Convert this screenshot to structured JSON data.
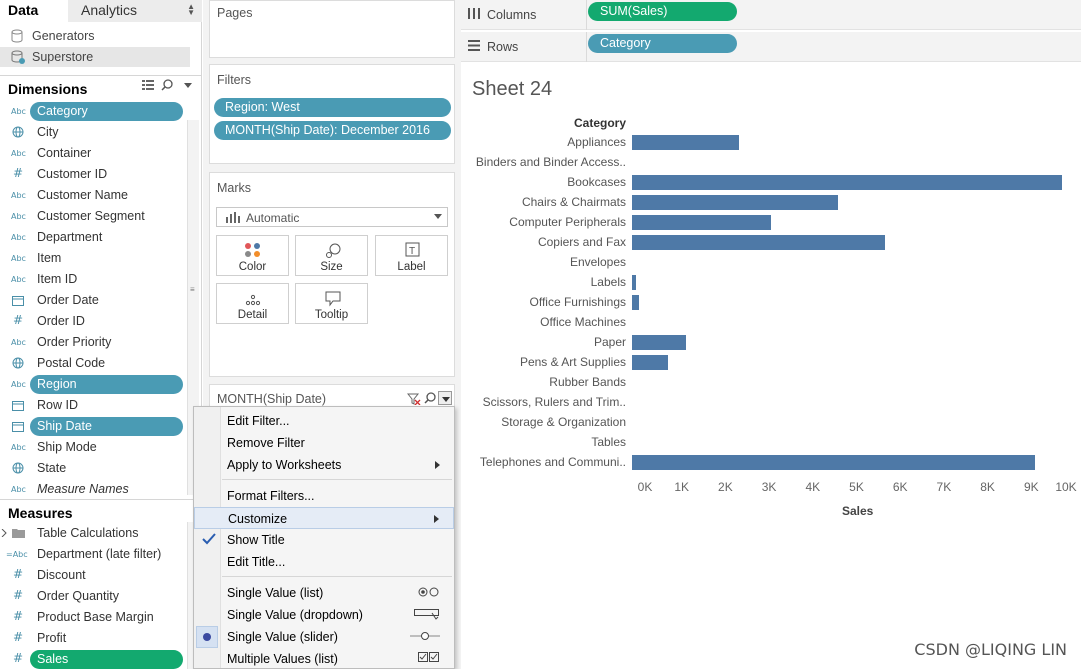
{
  "tabs": {
    "data": "Data",
    "analytics": "Analytics"
  },
  "datasources": [
    "Generators",
    "Superstore"
  ],
  "dimensions_header": "Dimensions",
  "dimensions": [
    {
      "type": "Abc",
      "label": "Category",
      "pill": true
    },
    {
      "type": "globe",
      "label": "City"
    },
    {
      "type": "Abc",
      "label": "Container"
    },
    {
      "type": "#",
      "label": "Customer ID"
    },
    {
      "type": "Abc",
      "label": "Customer Name"
    },
    {
      "type": "Abc",
      "label": "Customer Segment"
    },
    {
      "type": "Abc",
      "label": "Department"
    },
    {
      "type": "Abc",
      "label": "Item"
    },
    {
      "type": "Abc",
      "label": "Item ID"
    },
    {
      "type": "date",
      "label": "Order Date"
    },
    {
      "type": "#",
      "label": "Order ID"
    },
    {
      "type": "Abc",
      "label": "Order Priority"
    },
    {
      "type": "globe",
      "label": "Postal Code"
    },
    {
      "type": "Abc",
      "label": "Region",
      "pill": true
    },
    {
      "type": "date",
      "label": "Row ID"
    },
    {
      "type": "date",
      "label": "Ship Date",
      "pill": true
    },
    {
      "type": "Abc",
      "label": "Ship Mode"
    },
    {
      "type": "globe",
      "label": "State"
    },
    {
      "type": "Abc",
      "label": "Measure Names",
      "italic": true
    }
  ],
  "measures_header": "Measures",
  "measures": [
    {
      "type": "folder",
      "label": "Table Calculations"
    },
    {
      "type": "=Abc",
      "label": "Department (late filter)"
    },
    {
      "type": "#",
      "label": "Discount"
    },
    {
      "type": "#",
      "label": "Order Quantity"
    },
    {
      "type": "#",
      "label": "Product Base Margin"
    },
    {
      "type": "#",
      "label": "Profit"
    },
    {
      "type": "#",
      "label": "Sales",
      "pill": true
    }
  ],
  "cards": {
    "pages": "Pages",
    "filters": "Filters",
    "filter_pills": [
      "Region: West",
      "MONTH(Ship Date): December 2016"
    ],
    "marks": "Marks",
    "mark_type": "Automatic",
    "mark_buttons": [
      "Color",
      "Size",
      "Label",
      "Detail",
      "Tooltip"
    ],
    "quick_filter": "MONTH(Ship Date)"
  },
  "shelves": {
    "columns_label": "Columns",
    "columns_pill": "SUM(Sales)",
    "rows_label": "Rows",
    "rows_pill": "Category"
  },
  "colors": {
    "teal_pill": "#4a9bb4",
    "green_pill": "#13a96f",
    "bar": "#4e79a7"
  },
  "context_menu": {
    "items": [
      {
        "label": "Edit Filter..."
      },
      {
        "label": "Remove Filter"
      },
      {
        "label": "Apply to Worksheets",
        "submenu": true
      },
      {
        "label": "Format Filters..."
      },
      {
        "label": "Customize",
        "submenu": true,
        "highlighted": true
      },
      {
        "label": "Show Title",
        "checked": true
      },
      {
        "label": "Edit Title..."
      },
      {
        "label": "Single Value (list)",
        "icon": "radio-pair-icon"
      },
      {
        "label": "Single Value (dropdown)",
        "icon": "dropdown-icon"
      },
      {
        "label": "Single Value (slider)",
        "icon": "slider-icon",
        "selected": true
      },
      {
        "label": "Multiple Values (list)",
        "icon": "checkbox-pair-icon"
      }
    ]
  },
  "sheet_title": "Sheet 24",
  "chart_data": {
    "type": "bar",
    "orientation": "horizontal",
    "row_header": "Category",
    "categories": [
      "Appliances",
      "Binders and Binder Access..",
      "Bookcases",
      "Chairs & Chairmats",
      "Computer Peripherals",
      "Copiers and Fax",
      "Envelopes",
      "Labels",
      "Office Furnishings",
      "Office Machines",
      "Paper",
      "Pens & Art Supplies",
      "Rubber Bands",
      "Scissors, Rulers and Trim..",
      "Storage & Organization",
      "Tables",
      "Telephones and Communi.."
    ],
    "values": [
      2450,
      0,
      9850,
      4720,
      3180,
      5780,
      0,
      100,
      150,
      0,
      1230,
      820,
      0,
      0,
      0,
      0,
      9220
    ],
    "xlim": [
      0,
      10000
    ],
    "xticks": [
      "0K",
      "1K",
      "2K",
      "3K",
      "4K",
      "5K",
      "6K",
      "7K",
      "8K",
      "9K",
      "10K"
    ],
    "xlabel": "Sales"
  },
  "watermark": "CSDN @LIQING LIN"
}
